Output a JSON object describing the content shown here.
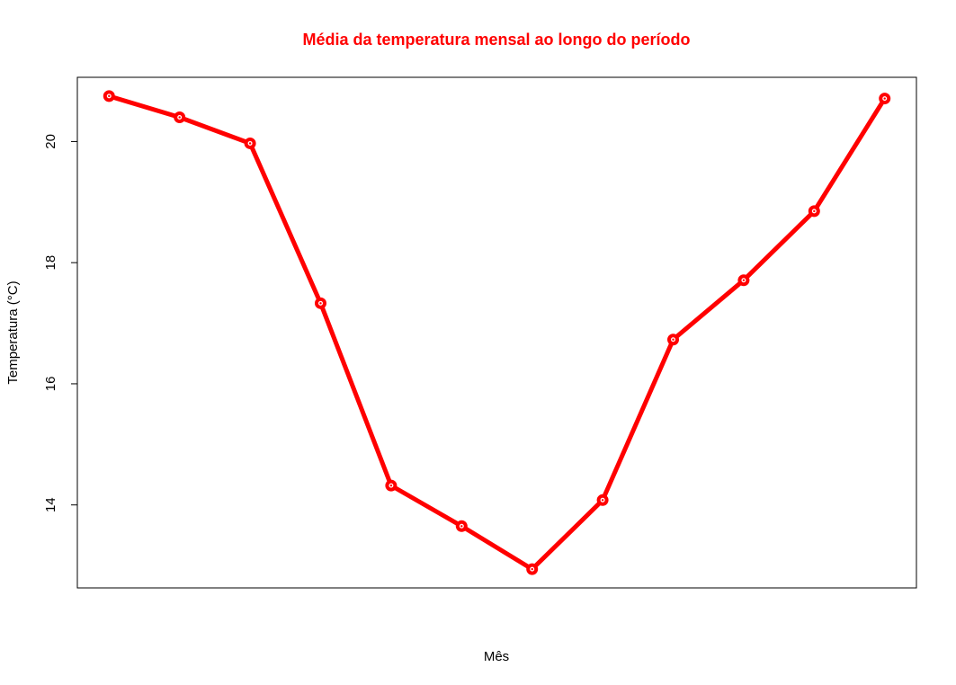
{
  "chart_data": {
    "type": "line",
    "title": "Média da temperatura mensal ao longo do período",
    "xlabel": "Mês",
    "ylabel": "Temperatura (°C)",
    "x": [
      1,
      2,
      3,
      4,
      5,
      6,
      7,
      8,
      9,
      10,
      11,
      12
    ],
    "series": [
      {
        "values": [
          20.75,
          20.4,
          19.97,
          17.33,
          14.32,
          13.65,
          12.94,
          14.08,
          16.73,
          17.71,
          18.85,
          20.71
        ],
        "color": "#ff0000"
      }
    ],
    "ylim": [
      12.63,
      21.06
    ],
    "yticks": [
      14,
      16,
      18,
      20
    ],
    "xaxis_shown": false,
    "grid": false,
    "legend": "none",
    "title_color": "#ff0000"
  }
}
